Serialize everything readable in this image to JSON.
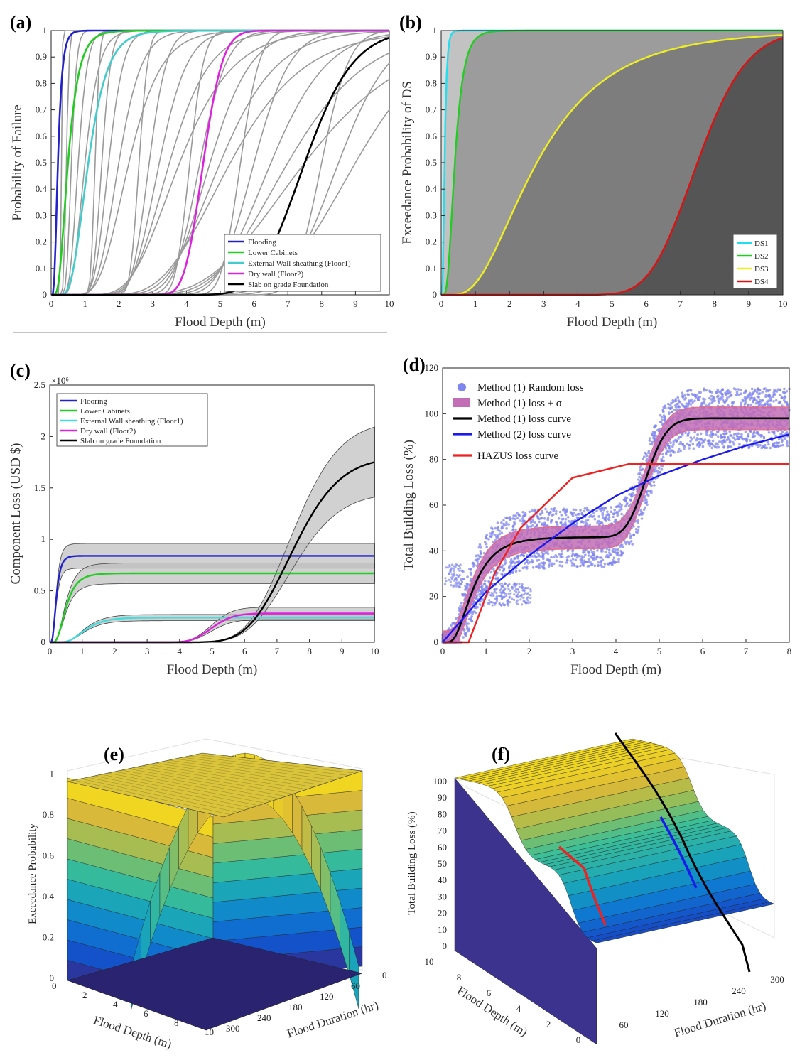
{
  "chart_data": [
    {
      "panel": "(a)",
      "type": "line",
      "xlabel": "Flood Depth (m)",
      "ylabel": "Probability of Failure",
      "xlim": [
        0,
        10
      ],
      "ylim": [
        0,
        1
      ],
      "xticks": [
        "0",
        "1",
        "2",
        "3",
        "4",
        "5",
        "6",
        "7",
        "8",
        "9",
        "10"
      ],
      "yticks": [
        "0",
        "0.1",
        "0.2",
        "0.3",
        "0.4",
        "0.5",
        "0.6",
        "0.7",
        "0.8",
        "0.9",
        "1"
      ],
      "legend_position": "bottom-right",
      "series": [
        {
          "name": "Flooding",
          "color": "#2222cc",
          "median": 0.2,
          "beta": 0.5
        },
        {
          "name": "Lower Cabinets",
          "color": "#22cc22",
          "median": 0.5,
          "beta": 0.5
        },
        {
          "name": "External Wall sheathing (Floor1)",
          "color": "#44cccc",
          "median": 1.1,
          "beta": 0.4
        },
        {
          "name": "Dry wall (Floor2)",
          "color": "#dd22dd",
          "median": 4.5,
          "beta": 0.1
        },
        {
          "name": "Slab on grade Foundation",
          "color": "#000000",
          "median": 7.5,
          "beta": 0.15
        }
      ],
      "background_medians": [
        0.3,
        0.45,
        0.6,
        0.8,
        1.0,
        1.3,
        1.5,
        1.7,
        2.0,
        2.3,
        2.6,
        2.9,
        3.2,
        3.5,
        3.8,
        4.1,
        4.4,
        4.7,
        5.0,
        5.3,
        5.6,
        6.0,
        6.5,
        7.0,
        7.5,
        8.0,
        8.5,
        9.0
      ]
    },
    {
      "panel": "(b)",
      "type": "area",
      "xlabel": "Flood Depth (m)",
      "ylabel": "Exceedance Probability of DS",
      "xlim": [
        0,
        10
      ],
      "ylim": [
        0,
        1
      ],
      "xticks": [
        "0",
        "1",
        "2",
        "3",
        "4",
        "5",
        "6",
        "7",
        "8",
        "9",
        "10"
      ],
      "yticks": [
        "0",
        "0.1",
        "0.2",
        "0.3",
        "0.4",
        "0.5",
        "0.6",
        "0.7",
        "0.8",
        "0.9",
        "1"
      ],
      "legend_position": "bottom-right",
      "series": [
        {
          "name": "DS1",
          "color": "#22ddee",
          "median": 0.1,
          "beta": 0.5
        },
        {
          "name": "DS2",
          "color": "#22cc22",
          "median": 0.4,
          "beta": 0.5
        },
        {
          "name": "DS3",
          "color": "#eeee22",
          "median": 2.8,
          "beta": 0.6
        },
        {
          "name": "DS4",
          "color": "#dd1111",
          "median": 7.5,
          "beta": 0.15
        }
      ]
    },
    {
      "panel": "(c)",
      "type": "line",
      "xlabel": "Flood Depth (m)",
      "ylabel": "Component Loss (USD $)",
      "scale_note": "×10⁶",
      "xlim": [
        0,
        10
      ],
      "ylim": [
        0,
        2.5
      ],
      "xticks": [
        "0",
        "1",
        "2",
        "3",
        "4",
        "5",
        "6",
        "7",
        "8",
        "9",
        "10"
      ],
      "yticks": [
        "0",
        "0.5",
        "1",
        "1.5",
        "2",
        "2.5"
      ],
      "legend_position": "top-left",
      "series": [
        {
          "name": "Flooring",
          "color": "#2222cc",
          "plateau": 0.84,
          "median": 0.2,
          "beta": 0.5,
          "band": 0.12
        },
        {
          "name": "Lower Cabinets",
          "color": "#22cc22",
          "plateau": 0.67,
          "median": 0.5,
          "beta": 0.5,
          "band": 0.1
        },
        {
          "name": "External Wall sheathing (Floor1)",
          "color": "#44dddd",
          "plateau": 0.24,
          "median": 1.1,
          "beta": 0.4,
          "band": 0.03
        },
        {
          "name": "Dry wall (Floor2)",
          "color": "#dd22dd",
          "plateau": 0.28,
          "median": 5.0,
          "beta": 0.1,
          "band": 0.06
        },
        {
          "name": "Slab on grade Foundation",
          "color": "#000000",
          "plateau": 1.8,
          "median": 7.5,
          "beta": 0.15,
          "band": 0.35
        }
      ]
    },
    {
      "panel": "(d)",
      "type": "scatter",
      "xlabel": "Flood Depth (m)",
      "ylabel": "Total Building Loss (%)",
      "xlim": [
        0,
        8
      ],
      "ylim": [
        0,
        120
      ],
      "xticks": [
        "0",
        "1",
        "2",
        "3",
        "4",
        "5",
        "6",
        "7",
        "8"
      ],
      "yticks": [
        "0",
        "20",
        "40",
        "60",
        "80",
        "100",
        "120"
      ],
      "legend_position": "top-left",
      "series": [
        {
          "name": "Method (1) Random loss",
          "color": "#7f86ef"
        },
        {
          "name": "Method (1) loss ± σ",
          "color": "#c26db5"
        },
        {
          "name": "Method (1) loss curve",
          "color": "#000000"
        },
        {
          "name": "Method (2) loss curve",
          "color": "#1a1aee"
        },
        {
          "name": "HAZUS loss curve",
          "color": "#ee2222"
        }
      ],
      "hazus_curve": {
        "x": [
          0,
          0.6,
          1.2,
          1.8,
          3.0,
          4.3,
          8
        ],
        "y": [
          0,
          0,
          30,
          50,
          72,
          78,
          78
        ]
      },
      "method2_curve": {
        "x": [
          0,
          1,
          2,
          3,
          4,
          5,
          6,
          7,
          8
        ],
        "y": [
          0,
          22,
          38,
          52,
          64,
          73,
          80,
          86,
          91
        ]
      }
    },
    {
      "panel": "(e)",
      "type": "surface",
      "xlabel": "Flood Depth (m)",
      "ylabel": "Flood Duration (hr)",
      "zlabel": "Exceedance Probability",
      "xticks": [
        "0",
        "2",
        "4",
        "6",
        "8",
        "10"
      ],
      "yticks": [
        "300",
        "240",
        "180",
        "120",
        "60",
        "0"
      ],
      "zticks": [
        "0",
        "0.2",
        "0.4",
        "0.6",
        "0.8",
        "1"
      ]
    },
    {
      "panel": "(f)",
      "type": "surface",
      "xlabel": "Flood Depth (m)",
      "ylabel": "Flood Duration (hr)",
      "zlabel": "Total Building Loss (%)",
      "xticks": [
        "10",
        "8",
        "6",
        "4",
        "2",
        "0"
      ],
      "yticks": [
        "60",
        "120",
        "180",
        "240",
        "300"
      ],
      "zticks": [
        "0",
        "10",
        "20",
        "30",
        "40",
        "50",
        "60",
        "70",
        "80",
        "90",
        "100"
      ]
    }
  ]
}
